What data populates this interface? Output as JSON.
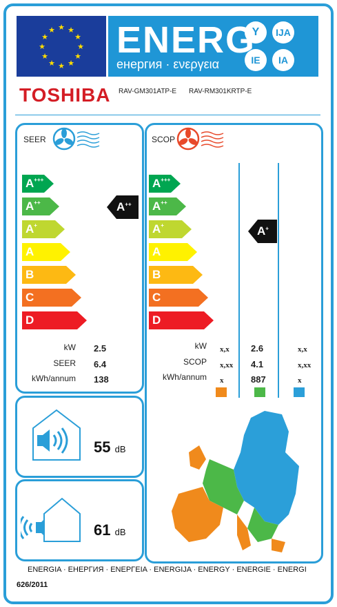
{
  "header": {
    "energy_word": "ENERG",
    "energy_subtitle": "енергия · ενεργεια",
    "lang_badges": [
      "Y",
      "IJA",
      "IE",
      "IA"
    ]
  },
  "brand": {
    "name": "TOSHIBA",
    "indoor_model": "RAV-GM301ATP-E",
    "outdoor_model": "RAV-RM301KRTP-E"
  },
  "seer_panel": {
    "title": "SEER",
    "classes": [
      "A+++",
      "A++",
      "A+",
      "A",
      "B",
      "C",
      "D"
    ],
    "rating": "A++",
    "rows": [
      {
        "label": "kW",
        "value": "2.5"
      },
      {
        "label": "SEER",
        "value": "6.4"
      },
      {
        "label": "kWh/annum",
        "value": "138"
      }
    ]
  },
  "scop_panel": {
    "title": "SCOP",
    "classes": [
      "A+++",
      "A++",
      "A+",
      "A",
      "B",
      "C",
      "D"
    ],
    "rating": "A+",
    "rows": [
      {
        "label": "kW",
        "warmer": "x,x",
        "average": "2.6",
        "colder": "x,x"
      },
      {
        "label": "SCOP",
        "warmer": "x,xx",
        "average": "4.1",
        "colder": "x,xx"
      },
      {
        "label": "kWh/annum",
        "warmer": "x",
        "average": "887",
        "colder": "x"
      }
    ]
  },
  "noise_indoor": {
    "value": "55",
    "unit": "dB"
  },
  "noise_outdoor": {
    "value": "61",
    "unit": "dB"
  },
  "footer": {
    "languages": "ENERGIA · ЕНЕРГИЯ · ΕΝΕΡΓΕΙΑ · ENERGIJA · ENERGY · ENERGIE · ENERGI",
    "regulation": "626/2011"
  },
  "colors": {
    "accent": "#2a9ed8",
    "warmer_zone": "#f08a1c",
    "average_zone": "#4cb848",
    "colder_zone": "#2b9fd9",
    "class_colors": [
      "#00a651",
      "#4cb848",
      "#bfd730",
      "#fff200",
      "#fdb913",
      "#f37021",
      "#ed1c24"
    ]
  }
}
